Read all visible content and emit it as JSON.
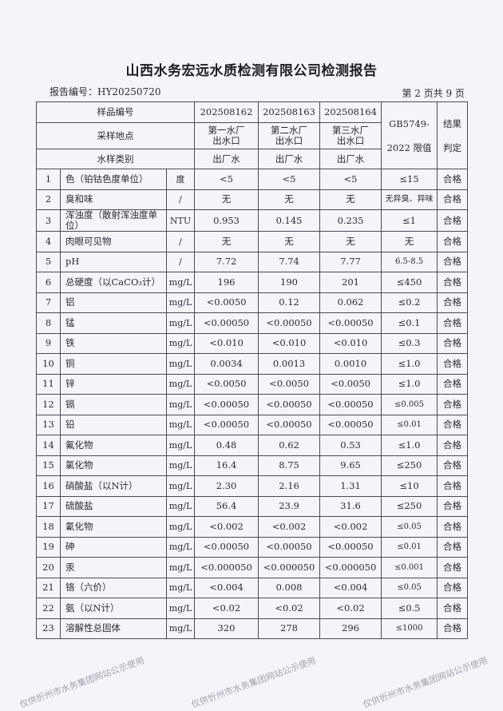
{
  "title": "山西水务宏远水质检测有限公司检测报告",
  "report_no": "报告编号：HY20250720",
  "page_no": "第 2 页共 9 页",
  "watermark": "仅供忻州市水务集团网站公示使用",
  "header": {
    "sample_no_label": "样品编号",
    "location_label": "采样地点",
    "type_label": "水样类别",
    "sample_nos": [
      "202508162",
      "202508163",
      "202508164"
    ],
    "locations": [
      "第一水厂出水口",
      "第二水厂出水口",
      "第三水厂出水口"
    ],
    "types": [
      "出厂水",
      "出厂水",
      "出厂水"
    ],
    "limit_label": "GB5749-2022 限值",
    "result_label": "结果判定"
  },
  "rows": [
    {
      "no": "1",
      "item": "色（铂钴色度单位）",
      "unit": "度",
      "v": [
        "<5",
        "<5",
        "<5"
      ],
      "limit": "≤15",
      "result": "合格"
    },
    {
      "no": "2",
      "item": "臭和味",
      "unit": "/",
      "v": [
        "无",
        "无",
        "无"
      ],
      "limit": "无异臭、异味",
      "result": "合格"
    },
    {
      "no": "3",
      "item": "浑浊度（散射浑浊度单位）",
      "unit": "NTU",
      "v": [
        "0.953",
        "0.145",
        "0.235"
      ],
      "limit": "≤1",
      "result": "合格"
    },
    {
      "no": "4",
      "item": "肉眼可见物",
      "unit": "/",
      "v": [
        "无",
        "无",
        "无"
      ],
      "limit": "无",
      "result": "合格"
    },
    {
      "no": "5",
      "item": "pH",
      "unit": "/",
      "v": [
        "7.72",
        "7.74",
        "7.77"
      ],
      "limit": "6.5-8.5",
      "result": "合格"
    },
    {
      "no": "6",
      "item": "总硬度（以CaCO₃计）",
      "unit": "mg/L",
      "v": [
        "196",
        "190",
        "201"
      ],
      "limit": "≤450",
      "result": "合格"
    },
    {
      "no": "7",
      "item": "铝",
      "unit": "mg/L",
      "v": [
        "<0.0050",
        "0.12",
        "0.062"
      ],
      "limit": "≤0.2",
      "result": "合格"
    },
    {
      "no": "8",
      "item": "锰",
      "unit": "mg/L",
      "v": [
        "<0.00050",
        "<0.00050",
        "<0.00050"
      ],
      "limit": "≤0.1",
      "result": "合格"
    },
    {
      "no": "9",
      "item": "铁",
      "unit": "mg/L",
      "v": [
        "<0.010",
        "<0.010",
        "<0.010"
      ],
      "limit": "≤0.3",
      "result": "合格"
    },
    {
      "no": "10",
      "item": "铜",
      "unit": "mg/L",
      "v": [
        "0.0034",
        "0.0013",
        "0.0010"
      ],
      "limit": "≤1.0",
      "result": "合格"
    },
    {
      "no": "11",
      "item": "锌",
      "unit": "mg/L",
      "v": [
        "<0.0050",
        "<0.0050",
        "<0.0050"
      ],
      "limit": "≤1.0",
      "result": "合格"
    },
    {
      "no": "12",
      "item": "镉",
      "unit": "mg/L",
      "v": [
        "<0.00050",
        "<0.00050",
        "<0.00050"
      ],
      "limit": "≤0.005",
      "result": "合格"
    },
    {
      "no": "13",
      "item": "铅",
      "unit": "mg/L",
      "v": [
        "<0.00050",
        "<0.00050",
        "<0.00050"
      ],
      "limit": "≤0.01",
      "result": "合格"
    },
    {
      "no": "14",
      "item": "氟化物",
      "unit": "mg/L",
      "v": [
        "0.48",
        "0.62",
        "0.53"
      ],
      "limit": "≤1.0",
      "result": "合格"
    },
    {
      "no": "15",
      "item": "氯化物",
      "unit": "mg/L",
      "v": [
        "16.4",
        "8.75",
        "9.65"
      ],
      "limit": "≤250",
      "result": "合格"
    },
    {
      "no": "16",
      "item": "硝酸盐（以N计）",
      "unit": "mg/L",
      "v": [
        "2.30",
        "2.16",
        "1.31"
      ],
      "limit": "≤10",
      "result": "合格"
    },
    {
      "no": "17",
      "item": "硫酸盐",
      "unit": "mg/L",
      "v": [
        "56.4",
        "23.9",
        "31.6"
      ],
      "limit": "≤250",
      "result": "合格"
    },
    {
      "no": "18",
      "item": "氰化物",
      "unit": "mg/L",
      "v": [
        "<0.002",
        "<0.002",
        "<0.002"
      ],
      "limit": "≤0.05",
      "result": "合格"
    },
    {
      "no": "19",
      "item": "砷",
      "unit": "mg/L",
      "v": [
        "<0.00050",
        "<0.00050",
        "<0.00050"
      ],
      "limit": "≤0.01",
      "result": "合格"
    },
    {
      "no": "20",
      "item": "汞",
      "unit": "mg/L",
      "v": [
        "<0.000050",
        "<0.000050",
        "<0.000050"
      ],
      "limit": "≤0.001",
      "result": "合格"
    },
    {
      "no": "21",
      "item": "铬（六价）",
      "unit": "mg/L",
      "v": [
        "<0.004",
        "0.008",
        "<0.004"
      ],
      "limit": "≤0.05",
      "result": "合格"
    },
    {
      "no": "22",
      "item": "氨（以N计）",
      "unit": "mg/L",
      "v": [
        "<0.02",
        "<0.02",
        "<0.02"
      ],
      "limit": "≤0.5",
      "result": "合格"
    },
    {
      "no": "23",
      "item": "溶解性总固体",
      "unit": "mg/L",
      "v": [
        "320",
        "278",
        "296"
      ],
      "limit": "≤1000",
      "result": "合格"
    }
  ]
}
